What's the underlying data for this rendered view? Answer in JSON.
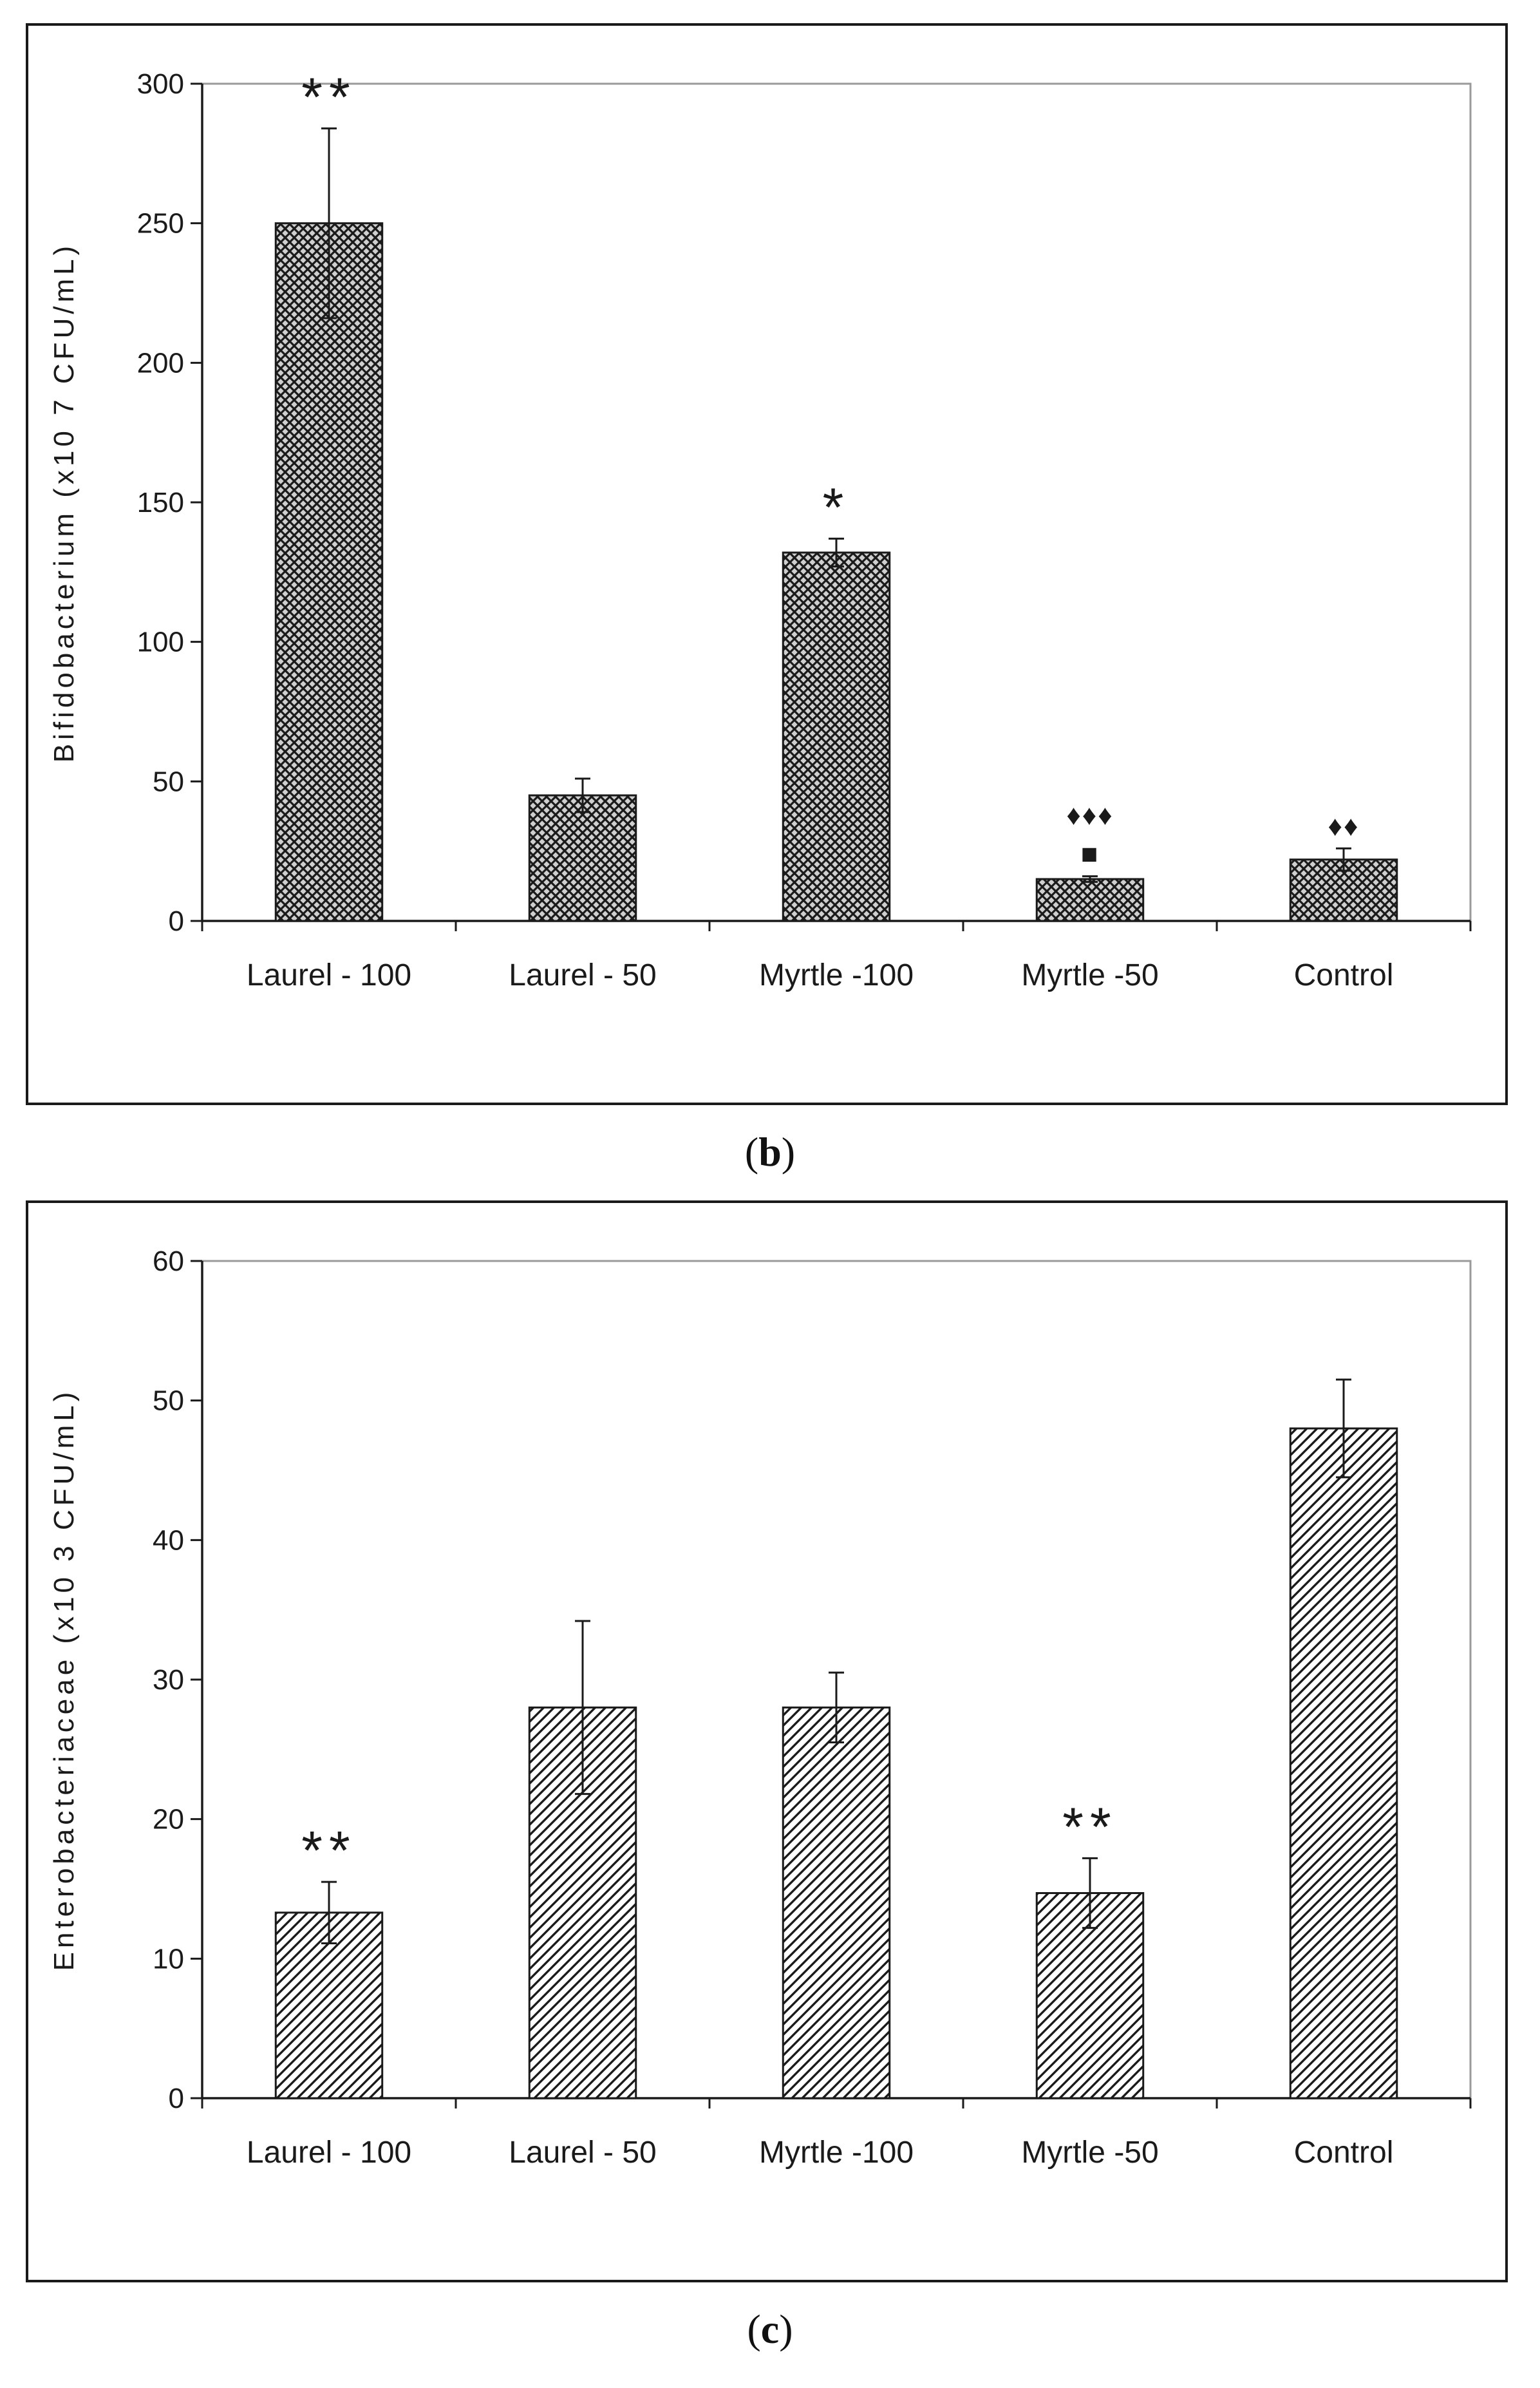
{
  "chart_data": [
    {
      "type": "bar",
      "panel_label": "b",
      "title": "",
      "xlabel": "",
      "ylabel": "Bifidobacterium (x10 7 CFU/mL)",
      "ylim": [
        0,
        300
      ],
      "yticks": [
        0,
        50,
        100,
        150,
        200,
        250,
        300
      ],
      "categories": [
        "Laurel - 100",
        "Laurel - 50",
        "Myrtle -100",
        "Myrtle -50",
        "Control"
      ],
      "values": [
        250,
        45,
        132,
        15,
        22
      ],
      "errors": [
        34,
        6,
        5,
        1,
        4
      ],
      "annotations": [
        "**",
        "",
        "*",
        "♦♦♦\n■",
        "♦♦"
      ],
      "pattern": "crosshatch",
      "grid": false
    },
    {
      "type": "bar",
      "panel_label": "c",
      "title": "",
      "xlabel": "",
      "ylabel": "Enterobacteriaceae (x10 3 CFU/mL)",
      "ylim": [
        0,
        60
      ],
      "yticks": [
        0,
        10,
        20,
        30,
        40,
        50,
        60
      ],
      "categories": [
        "Laurel - 100",
        "Laurel - 50",
        "Myrtle -100",
        "Myrtle -50",
        "Control"
      ],
      "values": [
        13.3,
        28,
        28,
        14.7,
        48
      ],
      "errors": [
        2.2,
        6.2,
        2.5,
        2.5,
        3.5
      ],
      "annotations": [
        "**",
        "",
        "",
        "**",
        ""
      ],
      "pattern": "diagonal",
      "grid": false
    }
  ],
  "captions": {
    "b": "b",
    "c": "c"
  },
  "colors": {
    "bar_fill": "#d9d9d9",
    "bar_pattern": "#1a1a1a",
    "axis": "#1a1a1a",
    "frame": "#9a9a9a"
  }
}
